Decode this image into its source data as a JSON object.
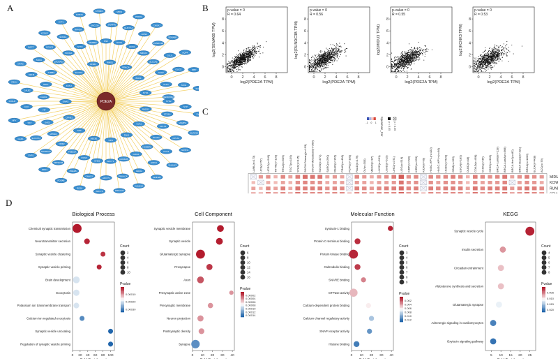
{
  "panels": {
    "a": "A",
    "b": "B",
    "c": "C",
    "d": "D"
  },
  "network": {
    "hub_label": "PDE2A",
    "inner_nodes": [
      "RAD51",
      "GJA1",
      "PAK4",
      "TJP1",
      "ABCB1",
      "APP",
      "CPNE1",
      "GNAS",
      "KCNJ",
      "SLC6A4",
      "DNM1",
      "RIMS1",
      "PRKCA",
      "BDNF",
      "SYN1"
    ],
    "outer_nodes": [
      "SYN2",
      "SYP",
      "SV2A",
      "STX1A",
      "VAMP2",
      "SNAP25",
      "CPLX1",
      "CPLX2",
      "NRXN1",
      "NLGN1",
      "DLG4",
      "SHANK3",
      "HOMER1",
      "GRIN1",
      "GRIN2B",
      "GRIA1",
      "GRIA2",
      "CAMK2A",
      "CAMK2B",
      "PRKACA",
      "PRKACB",
      "ADCY1",
      "ADCY5",
      "ADCY8",
      "GNB1",
      "GNAO1",
      "RGS4",
      "RGS9",
      "PDE1B",
      "PDE4B",
      "PDE10A",
      "PPP1R1B",
      "DRD1",
      "DRD2",
      "ADORA2A",
      "CNR1",
      "HTR2A",
      "SLC17A7",
      "GAD1",
      "GAD2",
      "SST",
      "NPY",
      "VIP",
      "CCK",
      "PVALB",
      "CALB1",
      "CALB2",
      "RELN",
      "NEFL",
      "NEFM",
      "MAP2",
      "TUBB3",
      "SNCA",
      "MAPT",
      "CACNA1A",
      "KCNC1",
      "KCNK3",
      "SCN1A",
      "SCN2A",
      "SYT1",
      "SYT2",
      "RPH3A",
      "RAB3A",
      "RIMBP2",
      "UNC13A",
      "STXBP1",
      "NSF",
      "SNAPIN",
      "MIDN",
      "NOS1",
      "GUCY1A",
      "PDE5A",
      "HCN1",
      "HCN2",
      "CNGA1",
      "MIDU3",
      "RUNDC3B",
      "SEMA6B",
      "SLC1A2",
      "GLUL",
      "AQP4",
      "GFAP",
      "OLIG2",
      "MBP",
      "PLP1",
      "MOG",
      "SOX10",
      "NEUROD2"
    ]
  },
  "scatter": {
    "xlabel": "log2(PDE2A TPM)",
    "x_ticks": [
      "0",
      "2",
      "4",
      "6",
      "8"
    ],
    "y_ticks": [
      "0",
      "2",
      "4",
      "6",
      "8"
    ],
    "plots": [
      {
        "stat": "p-value = 0",
        "r": "R = 0.64",
        "ylabel": "log2(SEMA6B TPM)"
      },
      {
        "stat": "p-value = 0",
        "r": "R = 0.56",
        "ylabel": "log2(RUNDC3B TPM)"
      },
      {
        "stat": "p-value = 0",
        "r": "R = 0.55",
        "ylabel": "log2(MIDU3 TPM)"
      },
      {
        "stat": "p-value = 0",
        "r": "R = 0.53",
        "ylabel": "log2(KCNK3 TPM)"
      }
    ]
  },
  "heatmap": {
    "legend_title": "Spearman_Cor",
    "legend_ticks": [
      "-1",
      "0",
      "1"
    ],
    "sig_labels": [
      "p < 0.05",
      "p > 0.05"
    ],
    "columns": [
      "LAML(n=173)",
      "UCS(n=57)",
      "UCEC(n=549)",
      "THYM(n=120)",
      "THCA(n=509)",
      "TGCT(n=139)",
      "STAD(n=415)",
      "SKCM-Primary(n=103)",
      "SKCM-Metastasis(n=368)",
      "SKCM(n=471)",
      "SARC(n=260)",
      "READ(n=166)",
      "PRAD(n=498)",
      "PCPG(n=181)",
      "PAAD(n=179)",
      "OV(n=303)",
      "MESO(n=87)",
      "LUSC(n=501)",
      "LUAD(n=515)",
      "LIHC(n=371)",
      "LGG(n=516)",
      "KIRP(n=290)",
      "KIRC(n=533)",
      "KICH(n=66)",
      "HNSC-HPV-(n=422)",
      "HNSC-HPV+(n=98)",
      "HNSC(n=522)",
      "GBM(n=153)",
      "ESCA(n=185)",
      "DLBC(n=48)",
      "COAD(n=458)",
      "CHOL(n=36)",
      "CESC(n=306)",
      "BRCA-LumB(n=219)",
      "BRCA-LumA(n=568)",
      "BRCA-Her2(n=82)",
      "BRCA-Basal(n=191)",
      "BRCA(n=1100)",
      "BLCA(n=408)",
      "ACC(n=79)"
    ],
    "rows": [
      "MIDU3",
      "KCNK3",
      "RUNDC3B",
      "SEMA6B"
    ],
    "values": [
      [
        0.1,
        0.35,
        0.4,
        0.2,
        0.45,
        0.3,
        0.5,
        0.6,
        0.55,
        0.55,
        0.3,
        0.35,
        0.3,
        0.1,
        0.45,
        0.35,
        0.25,
        0.35,
        0.4,
        0.5,
        0.7,
        0.4,
        0.45,
        0.1,
        0.45,
        0.4,
        0.45,
        0.5,
        0.45,
        0.2,
        0.5,
        0.45,
        0.4,
        0.45,
        0.55,
        0.3,
        0.4,
        0.5,
        0.4,
        0.35
      ],
      [
        0.15,
        0.05,
        0.25,
        0.15,
        0.3,
        0.2,
        0.4,
        0.45,
        0.4,
        0.4,
        0.25,
        0.3,
        0.3,
        0.05,
        0.35,
        0.3,
        0.2,
        0.3,
        0.3,
        0.35,
        0.55,
        0.35,
        0.4,
        0.05,
        0.4,
        0.3,
        0.4,
        0.4,
        0.35,
        0.15,
        0.4,
        0.3,
        0.35,
        0.35,
        0.45,
        0.25,
        0.3,
        0.4,
        0.35,
        0.25
      ],
      [
        0.3,
        0.15,
        0.45,
        0.3,
        0.5,
        0.25,
        0.55,
        0.5,
        0.5,
        0.5,
        0.4,
        0.45,
        0.45,
        0.05,
        0.5,
        0.45,
        0.35,
        0.45,
        0.5,
        0.5,
        0.6,
        0.45,
        0.5,
        0.1,
        0.5,
        0.45,
        0.5,
        0.5,
        0.5,
        0.3,
        0.55,
        0.45,
        0.5,
        0.5,
        0.55,
        0.35,
        0.45,
        0.55,
        0.5,
        0.45
      ],
      [
        0.45,
        0.4,
        0.6,
        0.5,
        0.6,
        0.45,
        0.65,
        0.6,
        0.6,
        0.6,
        0.55,
        0.6,
        0.6,
        0.35,
        0.6,
        0.55,
        0.5,
        0.6,
        0.6,
        0.6,
        0.7,
        0.55,
        0.6,
        0.35,
        0.6,
        0.55,
        0.6,
        0.6,
        0.6,
        0.45,
        0.65,
        0.55,
        0.6,
        0.6,
        0.65,
        0.5,
        0.55,
        0.65,
        0.6,
        0.55
      ]
    ],
    "nonsig": [
      [
        0,
        0
      ],
      [
        0,
        13
      ],
      [
        0,
        23
      ],
      [
        1,
        1
      ],
      [
        1,
        13
      ],
      [
        1,
        23
      ],
      [
        2,
        13
      ],
      [
        2,
        23
      ],
      [
        1,
        35
      ]
    ]
  },
  "chart_data": [
    {
      "type": "scatter",
      "title": "Biological Process",
      "xlabel": "Fold Enrichment",
      "x_ticks": [
        0,
        20,
        40,
        60,
        80,
        100
      ],
      "xlim": [
        0,
        110
      ],
      "categories": [
        "Chemical synaptic transmission",
        "Neurotransmitter secretion",
        "Synaptic vesicle clustering",
        "Synaptic vesicle priming",
        "Brain development",
        "Exocytosis",
        "Potassium ion transmembrane transport",
        "Calcium ion regulated exocytosis",
        "Synaptic vesicle uncoating",
        "Regulation of synaptic vesicle priming"
      ],
      "x": [
        12,
        38,
        80,
        70,
        10,
        10,
        10,
        25,
        100,
        100
      ],
      "count": [
        10,
        3,
        2,
        2,
        5,
        4,
        3,
        2,
        2,
        2
      ],
      "pvalue": [
        1e-06,
        1e-05,
        2e-05,
        1e-05,
        0.0002,
        0.0002,
        0.0002,
        0.0003,
        0.00034,
        0.00034
      ],
      "size_legend_title": "Count",
      "size_legend": [
        2,
        4,
        6,
        8,
        10
      ],
      "color_legend_title": "Pvalue",
      "color_ticks": [
        "0.00010",
        "0.00020",
        "0.00030"
      ],
      "color_range": [
        0,
        0.00034
      ]
    },
    {
      "type": "scatter",
      "title": "Cell Component",
      "xlabel": "Fold Enrichment",
      "x_ticks": [
        0,
        10,
        20,
        30,
        40
      ],
      "xlim": [
        0,
        42
      ],
      "categories": [
        "Synaptic vesicle membrane",
        "Synaptic vesicle",
        "Glutamatergic synapse",
        "Presynapse",
        "Axon",
        "Presynaptic active zone",
        "Presynaptic membrane",
        "Neuron projection",
        "Postsynaptic density",
        "Synapse"
      ],
      "x": [
        28,
        27,
        8,
        17,
        8,
        39,
        18,
        8,
        9,
        3
      ],
      "count": [
        8,
        8,
        16,
        6,
        8,
        2,
        4,
        6,
        5,
        14
      ],
      "pvalue": [
        1e-06,
        2e-06,
        1e-06,
        1e-05,
        2e-05,
        4e-05,
        4e-05,
        4e-05,
        4e-05,
        0.00013
      ],
      "size_legend_title": "Count",
      "size_legend": [
        6,
        8,
        10,
        12,
        14,
        16
      ],
      "color_legend_title": "Pvalue",
      "color_ticks": [
        "0.00002",
        "0.00004",
        "0.00006",
        "0.00008",
        "0.00010",
        "0.00012",
        "0.00014"
      ],
      "color_range": [
        0,
        0.00015
      ]
    },
    {
      "type": "scatter",
      "title": "Molecular Function",
      "xlabel": "Fold Enrichment",
      "x_ticks": [
        0,
        10,
        20,
        30,
        40
      ],
      "xlim": [
        0,
        42
      ],
      "categories": [
        "Syntaxin-1 binding",
        "Protein C-terminus binding",
        "Protein kinase binding",
        "Calmodulin binding",
        "SNARE binding",
        "GTPase activity",
        "Calcium-dependent protein binding",
        "Calcium channel regulatory activity",
        "SNAP receptor activity",
        "Histone binding"
      ],
      "x": [
        39,
        6,
        2,
        6,
        12,
        2,
        17,
        20,
        18,
        5
      ],
      "count": [
        2,
        3,
        9,
        3,
        2,
        7,
        2,
        2,
        2,
        3
      ],
      "pvalue": [
        0.0003,
        0.0006,
        0.0004,
        0.001,
        0.003,
        0.0045,
        0.006,
        0.009,
        0.011,
        0.012
      ],
      "size_legend_title": "Count",
      "size_legend": [
        3,
        4,
        5,
        6,
        7,
        8,
        9
      ],
      "color_legend_title": "Pvalue",
      "color_ticks": [
        "0.002",
        "0.004",
        "0.006",
        "0.008",
        "0.010",
        "0.012"
      ],
      "color_range": [
        0,
        0.013
      ]
    },
    {
      "type": "scatter",
      "title": "KEGG",
      "xlabel": "Fold Enrichment",
      "x_ticks": [
        5,
        10,
        15,
        20,
        25
      ],
      "xlim": [
        2,
        28
      ],
      "categories": [
        "Synaptic vesicle cycle",
        "Insulin secretion",
        "Circadian entrainment",
        "Aldosterone synthesis and secretion",
        "Glutamatergic synapse",
        "Adrenergic signaling in cardiomyocytes",
        "Oxytocin signaling pathway"
      ],
      "x": [
        25,
        11,
        10,
        10,
        9,
        6,
        6
      ],
      "count": [
        8,
        3,
        3,
        3,
        3,
        3,
        3
      ],
      "pvalue": [
        0.0005,
        0.006,
        0.008,
        0.008,
        0.012,
        0.02,
        0.021
      ],
      "size_legend_title": "Count",
      "size_legend": [
        4,
        5,
        6,
        7,
        8
      ],
      "color_legend_title": "Pvalue",
      "color_ticks": [
        "0.005",
        "0.010",
        "0.015",
        "0.020"
      ],
      "color_range": [
        0,
        0.022
      ]
    }
  ]
}
